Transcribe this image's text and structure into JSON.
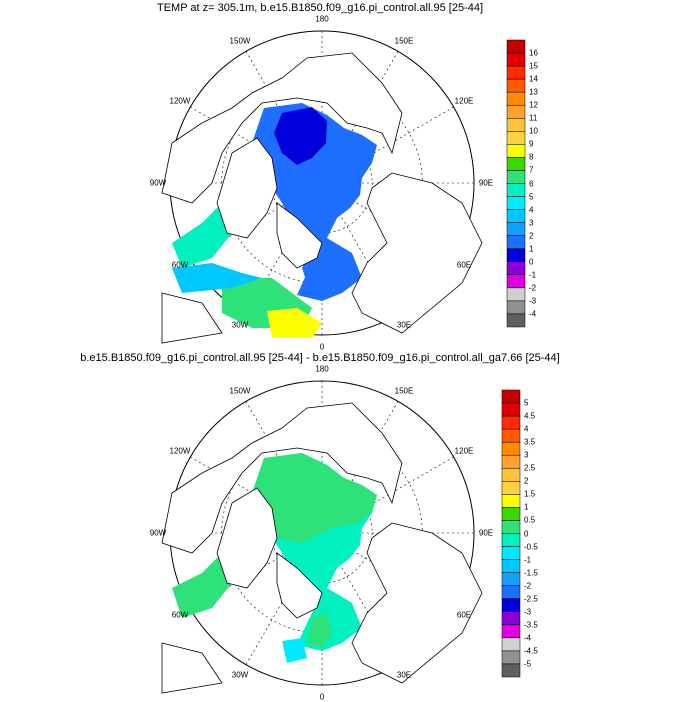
{
  "panels": [
    {
      "title": "TEMP at z= 305.1m, b.e15.B1850.f09_g16.pi_control.all.95 [25-44]",
      "longitude_labels": [
        "180",
        "150E",
        "120E",
        "90E",
        "60E",
        "30E",
        "0",
        "30W",
        "60W",
        "90W",
        "120W",
        "150W"
      ],
      "colorbar": {
        "labels": [
          "16",
          "15",
          "14",
          "13",
          "12",
          "11",
          "10",
          "9",
          "8",
          "7",
          "6",
          "5",
          "4",
          "3",
          "2",
          "1",
          "0",
          "-1",
          "-2",
          "-3",
          "-4"
        ],
        "colors": [
          "#c40000",
          "#e00000",
          "#ff2a00",
          "#ff5a00",
          "#ff8a00",
          "#ffa030",
          "#ffc23c",
          "#ffd040",
          "#ffff00",
          "#3cd600",
          "#2ee27a",
          "#00f0c0",
          "#00eaff",
          "#00c8ff",
          "#14a0ff",
          "#1e6eff",
          "#0000dc",
          "#8a00d6",
          "#e000e0",
          "#d0d0d0",
          "#909090",
          "#606060"
        ]
      }
    },
    {
      "title": "b.e15.B1850.f09_g16.pi_control.all.95 [25-44] - b.e15.B1850.f09_g16.pi_control.all_ga7.66 [25-44]",
      "longitude_labels": [
        "180",
        "150E",
        "120E",
        "90E",
        "60E",
        "30E",
        "0",
        "30W",
        "60W",
        "90W",
        "120W",
        "150W"
      ],
      "colorbar": {
        "labels": [
          "5",
          "4.5",
          "4",
          "3.5",
          "3",
          "2.5",
          "2",
          "1.5",
          "1",
          "0.5",
          "0",
          "-0.5",
          "-1",
          "-1.5",
          "-2",
          "-2.5",
          "-3",
          "-3.5",
          "-4",
          "-4.5",
          "-5"
        ],
        "colors": [
          "#c40000",
          "#e00000",
          "#ff2a00",
          "#ff5a00",
          "#ff8a00",
          "#ffa030",
          "#ffc23c",
          "#ffd040",
          "#ffff00",
          "#3cd600",
          "#2ee27a",
          "#00f0c0",
          "#00eaff",
          "#00c8ff",
          "#14a0ff",
          "#1e6eff",
          "#0000dc",
          "#8a00d6",
          "#e000e0",
          "#d0d0d0",
          "#909090",
          "#606060"
        ]
      }
    }
  ]
}
